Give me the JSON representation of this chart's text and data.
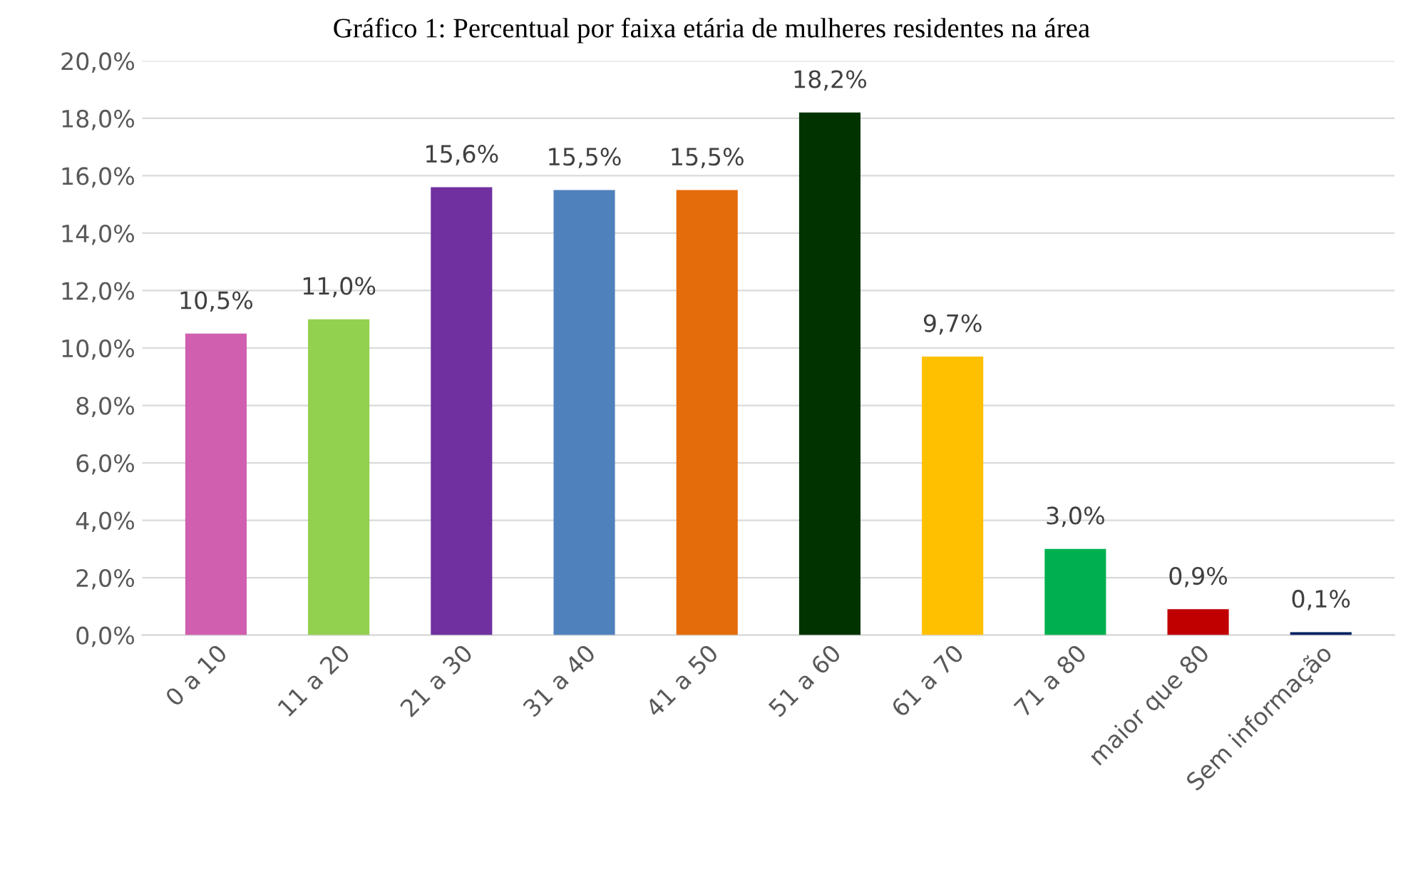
{
  "chart_data": {
    "type": "bar",
    "title": "Gráfico 1: Percentual por faixa etária de mulheres residentes na área",
    "categories": [
      "0 a 10",
      "11 a 20",
      "21 a 30",
      "31 a 40",
      "41 a 50",
      "51 a 60",
      "61 a 70",
      "71 a 80",
      "maior que 80",
      "Sem informação"
    ],
    "values": [
      10.5,
      11.0,
      15.6,
      15.5,
      15.5,
      18.2,
      9.7,
      3.0,
      0.9,
      0.1
    ],
    "colors": [
      "#d05faf",
      "#92d050",
      "#7030a0",
      "#4f81bd",
      "#e46c0a",
      "#003300",
      "#ffc000",
      "#00b050",
      "#c00000",
      "#002060"
    ],
    "value_labels": [
      "10,5%",
      "11,0%",
      "15,6%",
      "15,5%",
      "15,5%",
      "18,2%",
      "9,7%",
      "3,0%",
      "0,9%",
      "0,1%"
    ],
    "ylim": [
      0,
      20
    ],
    "yticks": [
      {
        "value": 0,
        "label": "0,0%"
      },
      {
        "value": 2,
        "label": "2,0%"
      },
      {
        "value": 4,
        "label": "4,0%"
      },
      {
        "value": 6,
        "label": "6,0%"
      },
      {
        "value": 8,
        "label": "8,0%"
      },
      {
        "value": 10,
        "label": "10,0%"
      },
      {
        "value": 12,
        "label": "12,0%"
      },
      {
        "value": 14,
        "label": "14,0%"
      },
      {
        "value": 16,
        "label": "16,0%"
      },
      {
        "value": 18,
        "label": "18,0%"
      },
      {
        "value": 20,
        "label": "20,0%"
      }
    ],
    "grid": "y"
  }
}
